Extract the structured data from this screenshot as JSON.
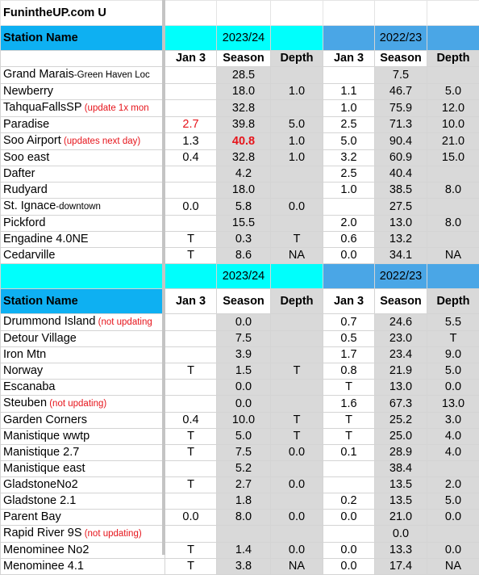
{
  "site_title": "FunintheUP.com U",
  "sections": [
    {
      "label": "Station Name",
      "year1": "2023/24",
      "year2": "2022/23",
      "columns": [
        "Jan 3",
        "Season",
        "Depth",
        "Jan 3",
        "Season",
        "Depth"
      ],
      "rows": [
        {
          "name": "Grand Marais",
          "suffix": "-Green Haven Loc",
          "note": "",
          "values": [
            "",
            "28.5",
            "",
            "",
            "7.5",
            ""
          ]
        },
        {
          "name": "Newberry",
          "suffix": "",
          "note": "",
          "values": [
            "",
            "18.0",
            "1.0",
            "1.1",
            "46.7",
            "5.0"
          ]
        },
        {
          "name": "TahquaFallsSP",
          "suffix": "",
          "note": " (update 1x mon",
          "values": [
            "",
            "32.8",
            "",
            "1.0",
            "75.9",
            "12.0"
          ]
        },
        {
          "name": "Paradise",
          "suffix": "",
          "note": "",
          "values": [
            "2.7",
            "39.8",
            "5.0",
            "2.5",
            "71.3",
            "10.0"
          ]
        },
        {
          "name": "Soo Airport",
          "suffix": "",
          "note": " (updates next day)",
          "values": [
            "1.3",
            "40.8",
            "1.0",
            "5.0",
            "90.4",
            "21.0"
          ]
        },
        {
          "name": "Soo east",
          "suffix": "",
          "note": "",
          "values": [
            "0.4",
            "32.8",
            "1.0",
            "3.2",
            "60.9",
            "15.0"
          ]
        },
        {
          "name": "Dafter",
          "suffix": "",
          "note": "",
          "values": [
            "",
            "4.2",
            "",
            "2.5",
            "40.4",
            ""
          ]
        },
        {
          "name": "Rudyard",
          "suffix": "",
          "note": "",
          "values": [
            "",
            "18.0",
            "",
            "1.0",
            "38.5",
            "8.0"
          ]
        },
        {
          "name": "St. Ignace",
          "suffix": "-downtown",
          "note": "",
          "values": [
            "0.0",
            "5.8",
            "0.0",
            "",
            "27.5",
            ""
          ]
        },
        {
          "name": "Pickford",
          "suffix": "",
          "note": "",
          "values": [
            "",
            "15.5",
            "",
            "2.0",
            "13.0",
            "8.0"
          ]
        },
        {
          "name": "Engadine 4.0NE",
          "suffix": "",
          "note": "",
          "values": [
            "T",
            "0.3",
            "T",
            "0.6",
            "13.2",
            ""
          ]
        },
        {
          "name": "Cedarville",
          "suffix": "",
          "note": "",
          "values": [
            "T",
            "8.6",
            "NA",
            "0.0",
            "34.1",
            "NA"
          ]
        }
      ]
    },
    {
      "label": "Station Name",
      "year1": "2023/24",
      "year2": "2022/23",
      "columns": [
        "Jan 3",
        "Season",
        "Depth",
        "Jan 3",
        "Season",
        "Depth"
      ],
      "rows": [
        {
          "name": "Drummond Island",
          "suffix": "",
          "note": " (not updating",
          "values": [
            "",
            "0.0",
            "",
            "0.7",
            "24.6",
            "5.5"
          ]
        },
        {
          "name": "Detour Village",
          "suffix": "",
          "note": "",
          "values": [
            "",
            "7.5",
            "",
            "0.5",
            "23.0",
            "T"
          ]
        },
        {
          "name": "Iron Mtn",
          "suffix": "",
          "note": "",
          "values": [
            "",
            "3.9",
            "",
            "1.7",
            "23.4",
            "9.0"
          ]
        },
        {
          "name": "Norway",
          "suffix": "",
          "note": "",
          "values": [
            "T",
            "1.5",
            "T",
            "0.8",
            "21.9",
            "5.0"
          ]
        },
        {
          "name": "Escanaba",
          "suffix": "",
          "note": "",
          "values": [
            "",
            "0.0",
            "",
            "T",
            "13.0",
            "0.0"
          ]
        },
        {
          "name": "Steuben",
          "suffix": "",
          "note": " (not updating)",
          "values": [
            "",
            "0.0",
            "",
            "1.6",
            "67.3",
            "13.0"
          ]
        },
        {
          "name": "Garden Corners",
          "suffix": "",
          "note": "",
          "values": [
            "0.4",
            "10.0",
            "T",
            "T",
            "25.2",
            "3.0"
          ]
        },
        {
          "name": "Manistique wwtp",
          "suffix": "",
          "note": "",
          "values": [
            "T",
            "5.0",
            "T",
            "T",
            "25.0",
            "4.0"
          ]
        },
        {
          "name": "Manistique 2.7",
          "suffix": "",
          "note": "",
          "values": [
            "T",
            "7.5",
            "0.0",
            "0.1",
            "28.9",
            "4.0"
          ]
        },
        {
          "name": "Manistique east",
          "suffix": "",
          "note": "",
          "values": [
            "",
            "5.2",
            "",
            "",
            "38.4",
            ""
          ]
        },
        {
          "name": "GladstoneNo2",
          "suffix": "",
          "note": "",
          "values": [
            "T",
            "2.7",
            "0.0",
            "",
            "13.5",
            "2.0"
          ]
        },
        {
          "name": "Gladstone 2.1",
          "suffix": "",
          "note": "",
          "values": [
            "",
            "1.8",
            "",
            "0.2",
            "13.5",
            "5.0"
          ]
        },
        {
          "name": "Parent Bay",
          "suffix": "",
          "note": "",
          "values": [
            "0.0",
            "8.0",
            "0.0",
            "0.0",
            "21.0",
            "0.0"
          ]
        },
        {
          "name": "Rapid River 9S",
          "suffix": "",
          "note": " (not updating)",
          "values": [
            "",
            "",
            "",
            "",
            "0.0",
            ""
          ]
        },
        {
          "name": "Menominee No2",
          "suffix": "",
          "note": "",
          "values": [
            "T",
            "1.4",
            "0.0",
            "0.0",
            "13.3",
            "0.0"
          ]
        },
        {
          "name": "Menominee 4.1",
          "suffix": "",
          "note": "",
          "values": [
            "T",
            "3.8",
            "NA",
            "0.0",
            "17.4",
            "NA"
          ]
        }
      ]
    }
  ],
  "highlights": {
    "red_values": [
      "sections.0.rows.3.values.0"
    ],
    "red_bold_values": [
      "sections.0.rows.4.values.1"
    ]
  },
  "colors": {
    "station_header_bg": "#0eb0f2",
    "year1_bg": "#00fffc",
    "year2_bg": "#4aa6e6",
    "shaded_column_bg": "#d9d9d9",
    "note_text": "#e6141b"
  }
}
